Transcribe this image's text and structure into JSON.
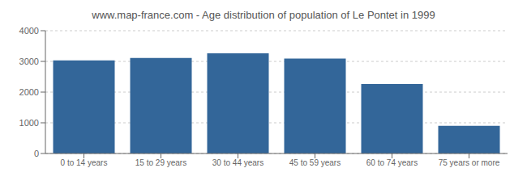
{
  "chart_data": {
    "type": "bar",
    "title": "www.map-france.com - Age distribution of population of Le Pontet in 1999",
    "categories": [
      "0 to 14 years",
      "15 to 29 years",
      "30 to 44 years",
      "45 to 59 years",
      "60 to 74 years",
      "75 years or more"
    ],
    "values": [
      3030,
      3110,
      3260,
      3095,
      2265,
      900
    ],
    "color": "#336699",
    "ylim": [
      0,
      4000
    ],
    "yticks": [
      0,
      1000,
      2000,
      3000,
      4000
    ],
    "grid": true
  }
}
